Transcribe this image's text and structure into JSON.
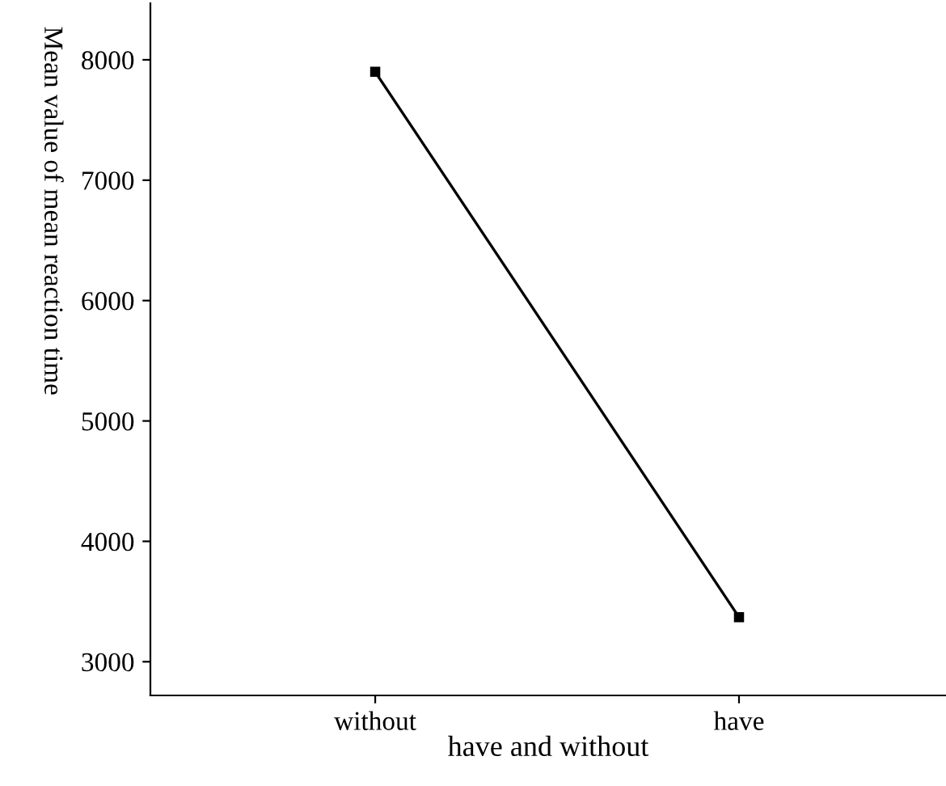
{
  "chart_data": {
    "type": "line",
    "xlabel": "have and without",
    "ylabel": "Mean value of mean reaction time",
    "categories": [
      "without",
      "have"
    ],
    "series": [
      {
        "color": "#000000",
        "values": [
          7900,
          3370
        ]
      }
    ],
    "marker": "square",
    "line_style": "solid",
    "ylim": [
      2720,
      8470
    ],
    "yticks": [
      3000,
      4000,
      5000,
      6000,
      7000,
      8000
    ],
    "grid": false,
    "legend": false
  }
}
